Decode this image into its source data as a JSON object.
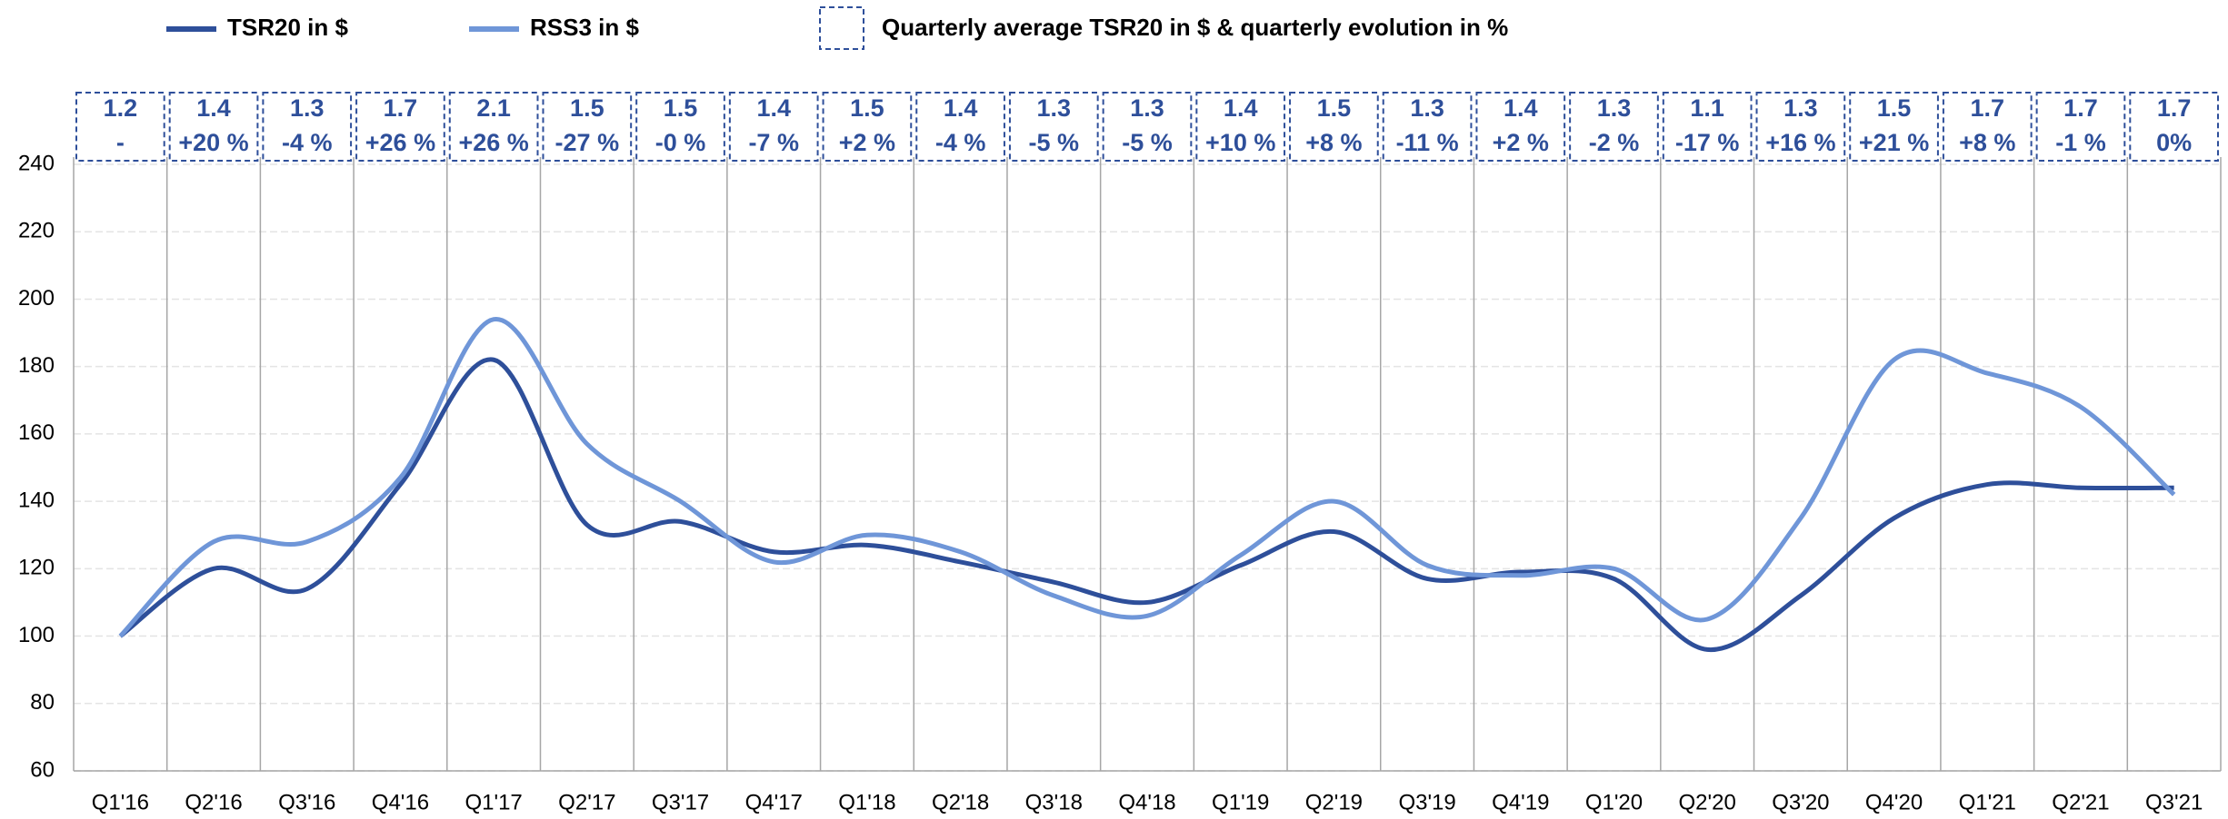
{
  "chart_data": {
    "type": "line",
    "categories": [
      "Q1'16",
      "Q2'16",
      "Q3'16",
      "Q4'16",
      "Q1'17",
      "Q2'17",
      "Q3'17",
      "Q4'17",
      "Q1'18",
      "Q2'18",
      "Q3'18",
      "Q4'18",
      "Q1'19",
      "Q2'19",
      "Q3'19",
      "Q4'19",
      "Q1'20",
      "Q2'20",
      "Q3'20",
      "Q4'20",
      "Q1'21",
      "Q2'21",
      "Q3'21"
    ],
    "series": [
      {
        "name": "TSR20 in $",
        "color": "#2e4f9a",
        "values": [
          100,
          120,
          114,
          145,
          182,
          133,
          134,
          125,
          127,
          122,
          116,
          110,
          121,
          131,
          117,
          119,
          117,
          96,
          112,
          135,
          145,
          144,
          144
        ]
      },
      {
        "name": "RSS3 in $",
        "color": "#6f96d8",
        "values": [
          100,
          128,
          128,
          147,
          194,
          157,
          140,
          122,
          130,
          125,
          112,
          106,
          124,
          140,
          121,
          118,
          120,
          105,
          135,
          182,
          178,
          168,
          142
        ]
      }
    ],
    "annotation_legend": "Quarterly average TSR20 in $ & quarterly evolution in %",
    "quarterly_average": [
      1.2,
      1.4,
      1.3,
      1.7,
      2.1,
      1.5,
      1.5,
      1.4,
      1.5,
      1.4,
      1.3,
      1.3,
      1.4,
      1.5,
      1.3,
      1.4,
      1.3,
      1.1,
      1.3,
      1.5,
      1.7,
      1.7,
      1.7
    ],
    "quarterly_evolution": [
      null,
      20,
      -4,
      26,
      26,
      -27,
      0,
      -7,
      2,
      -4,
      -5,
      -5,
      10,
      8,
      -11,
      2,
      -2,
      -17,
      16,
      21,
      8,
      -1,
      0
    ],
    "quarterly_evolution_labels": [
      "-",
      "+20 %",
      "-4 %",
      "+26 %",
      "+26 %",
      "-27 %",
      "-0 %",
      "-7 %",
      "+2 %",
      "-4 %",
      "-5 %",
      "-5 %",
      "+10 %",
      "+8 %",
      "-11 %",
      "+2 %",
      "-2 %",
      "-17 %",
      "+16 %",
      "+21 %",
      "+8 %",
      "-1 %",
      "0%"
    ],
    "ylim": [
      60,
      240
    ],
    "yticks": [
      60,
      80,
      100,
      120,
      140,
      160,
      180,
      200,
      220,
      240
    ],
    "grid": true
  }
}
